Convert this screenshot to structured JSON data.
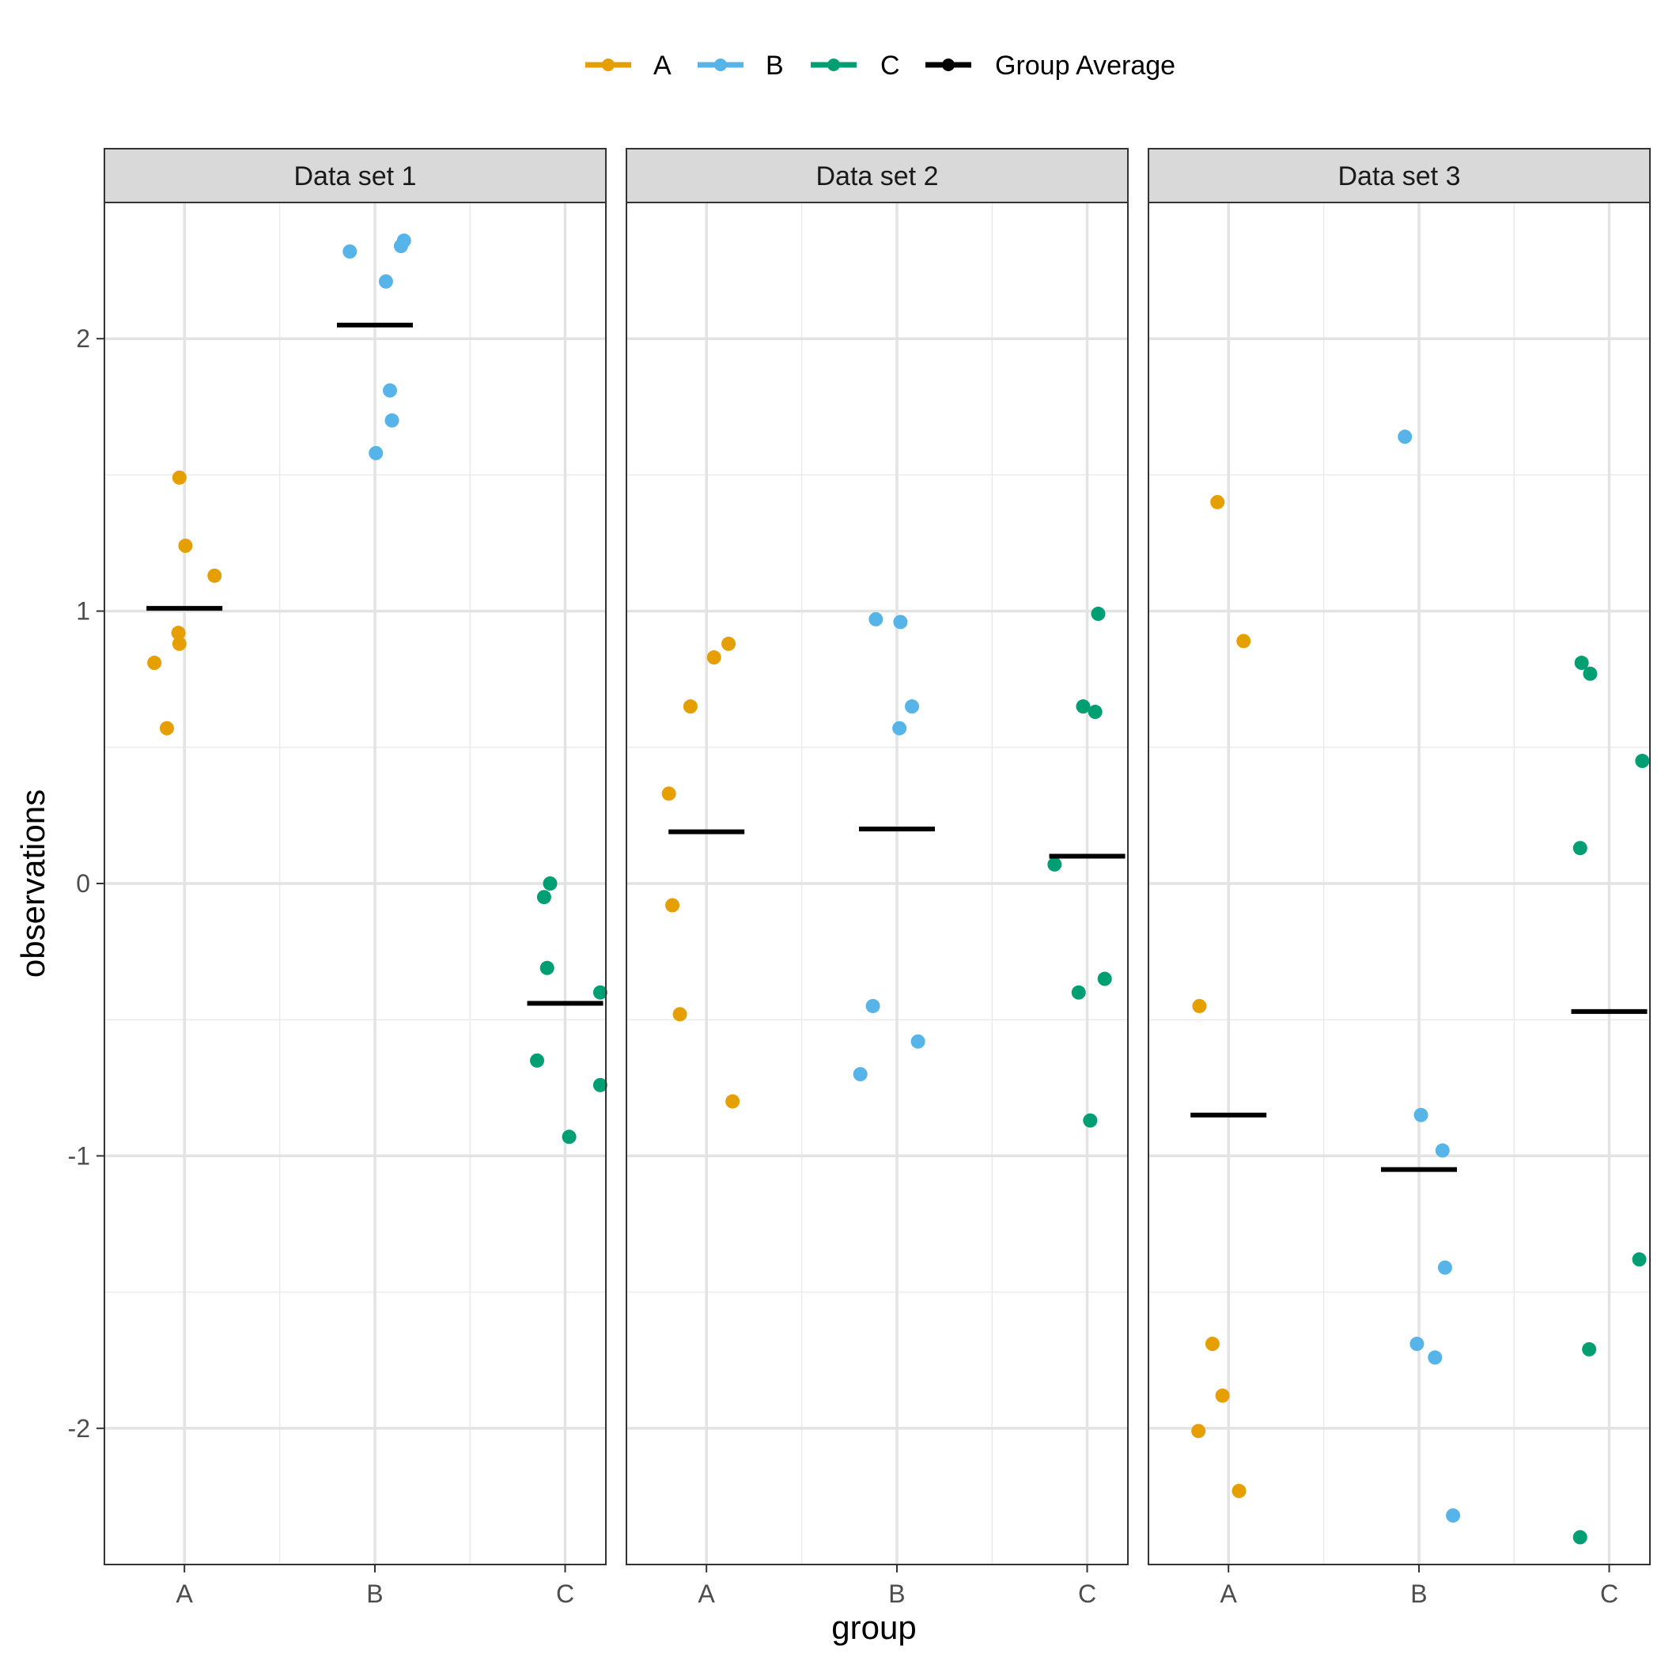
{
  "chart_data": {
    "type": "scatter",
    "xlabel": "group",
    "ylabel": "observations",
    "categories": [
      "A",
      "B",
      "C"
    ],
    "ylim": [
      -2.5,
      2.5
    ],
    "y_ticks": [
      2,
      1,
      0,
      -1,
      -2
    ],
    "y_tick_labels": [
      "2",
      "1",
      "0",
      "-1",
      "-2"
    ],
    "legend": {
      "position": "top",
      "items": [
        {
          "label": "A",
          "color": "#E69F00"
        },
        {
          "label": "B",
          "color": "#56B4E9"
        },
        {
          "label": "C",
          "color": "#009E73"
        },
        {
          "label": "Group Average",
          "color": "#000000"
        }
      ]
    },
    "grid": true,
    "panels": [
      {
        "title": "Data set 1",
        "groups": [
          {
            "name": "A",
            "values": [
              1.49,
              1.24,
              1.13,
              0.92,
              0.88,
              0.81,
              0.57
            ],
            "average": 1.01
          },
          {
            "name": "B",
            "values": [
              2.36,
              2.34,
              2.32,
              2.21,
              1.81,
              1.7,
              1.58
            ],
            "average": 2.05
          },
          {
            "name": "C",
            "values": [
              0.0,
              -0.05,
              -0.31,
              -0.4,
              -0.65,
              -0.74,
              -0.93
            ],
            "average": -0.44
          }
        ]
      },
      {
        "title": "Data set 2",
        "groups": [
          {
            "name": "A",
            "values": [
              0.88,
              0.83,
              0.65,
              0.33,
              -0.08,
              -0.48,
              -0.8
            ],
            "average": 0.19
          },
          {
            "name": "B",
            "values": [
              0.97,
              0.96,
              0.65,
              0.57,
              -0.45,
              -0.58,
              -0.7
            ],
            "average": 0.2
          },
          {
            "name": "C",
            "values": [
              0.99,
              0.65,
              0.63,
              0.07,
              -0.35,
              -0.4,
              -0.87
            ],
            "average": 0.1
          }
        ]
      },
      {
        "title": "Data set 3",
        "groups": [
          {
            "name": "A",
            "values": [
              1.4,
              0.89,
              -0.45,
              -1.69,
              -1.88,
              -2.01,
              -2.23
            ],
            "average": -0.85
          },
          {
            "name": "B",
            "values": [
              1.64,
              -0.85,
              -0.98,
              -1.41,
              -1.69,
              -1.74,
              -2.32
            ],
            "average": -1.05
          },
          {
            "name": "C",
            "values": [
              0.81,
              0.77,
              0.45,
              0.13,
              -1.38,
              -1.71,
              -2.4
            ],
            "average": -0.47
          }
        ]
      }
    ]
  }
}
